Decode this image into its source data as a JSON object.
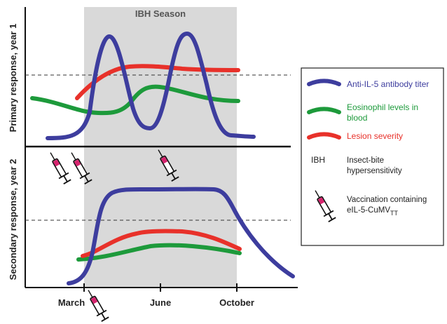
{
  "season": {
    "label": "IBH Season",
    "color": "#d9d9d9"
  },
  "axes": {
    "year1_label": "Primary response, year 1",
    "year2_label": "Secondary response, year 2",
    "months": [
      "March",
      "June",
      "October"
    ]
  },
  "legend": {
    "items": [
      {
        "text": "Anti-IL-5 antibody titer",
        "color": "#3d3d9e"
      },
      {
        "text_line1": "Eosinophil levels in",
        "text_line2": "blood",
        "color": "#1d9a3b"
      },
      {
        "text": "Lesion severity",
        "color": "#e8312a"
      }
    ],
    "abbrev": "IBH",
    "abbrev_line1": "Insect-bite",
    "abbrev_line2": "hypersensitivity",
    "vaccine_line1": "Vaccination containing",
    "vaccine_line2": "eIL-5-CuMV",
    "vaccine_subscript": "TT"
  },
  "colors": {
    "antibody": "#3d3d9e",
    "eosinophil": "#1d9a3b",
    "lesion": "#e8312a",
    "syringe_tip": "#d6246e",
    "text_dark": "#222222"
  }
}
